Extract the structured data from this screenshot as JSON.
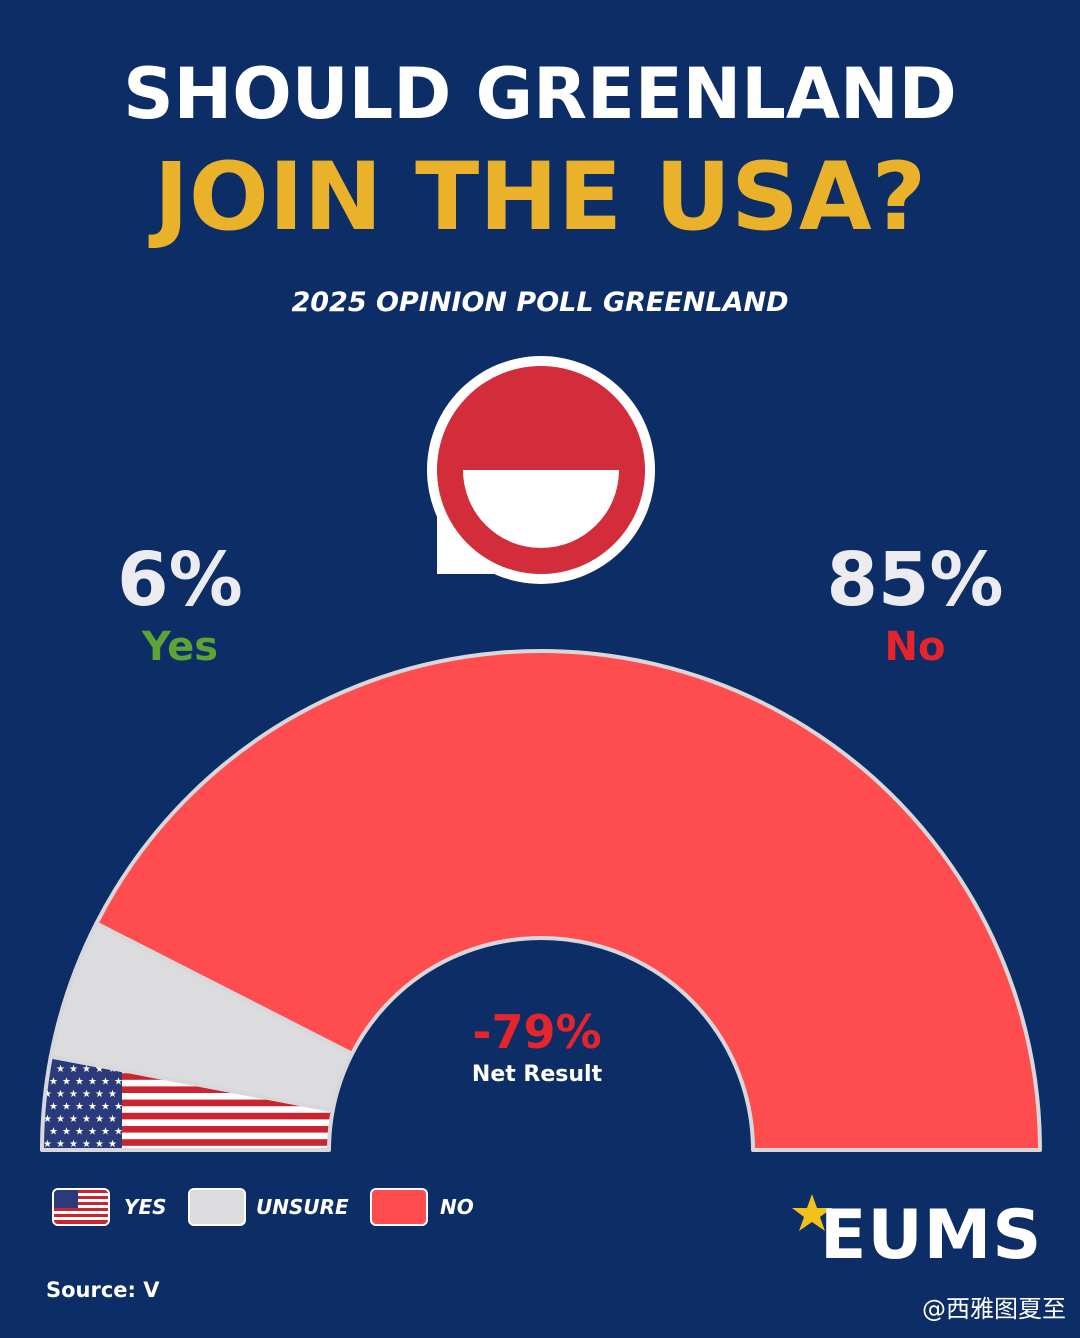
{
  "title_line1": "SHOULD GREENLAND",
  "title_line2": "JOIN THE USA?",
  "subtitle": "2025 OPINION POLL GREENLAND",
  "yes_value": "6%",
  "yes_label": "Yes",
  "no_value": "85%",
  "no_label": "No",
  "net_value": "-79%",
  "net_label": "Net Result",
  "legend": [
    {
      "label": "YES",
      "icon": "us-flag-icon"
    },
    {
      "label": "UNSURE",
      "color": "#dcdcde"
    },
    {
      "label": "NO",
      "color": "#ff4d4f"
    }
  ],
  "logo": "EUMS",
  "source": "Source: V",
  "watermark": "@西雅图夏至",
  "colors": {
    "background": "#0d2d66",
    "yes": "#e5242b",
    "unsure": "#dcdcde",
    "no": "#ff4d4f",
    "title_accent": "#e9b22a",
    "yes_label": "#5da335",
    "no_label": "#e5242b"
  },
  "chart_data": {
    "type": "pie",
    "style": "semicircle-donut",
    "title": "2025 OPINION POLL GREENLAND",
    "categories": [
      "Yes",
      "Unsure",
      "No"
    ],
    "values": [
      6,
      9,
      85
    ],
    "unit": "%",
    "net_result": -79
  }
}
